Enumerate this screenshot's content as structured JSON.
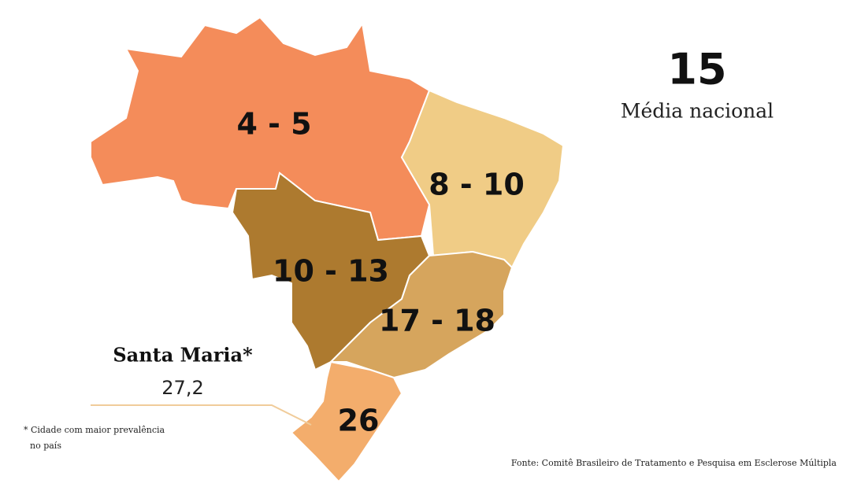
{
  "regions": [
    {
      "label": "4 - 5",
      "color": "#f48c5a"
    },
    {
      "label": "8 - 10",
      "color": "#f0cc86"
    },
    {
      "label": "10 - 13",
      "color": "#ad7a2f"
    },
    {
      "label": "17 - 18",
      "color": "#d6a55d"
    },
    {
      "label": "26",
      "color": "#f3ad6c"
    }
  ],
  "national": {
    "value": "15",
    "label": "Média nacional"
  },
  "callout": {
    "title": "Santa Maria*",
    "value": "27,2"
  },
  "footnote": [
    "* Cidade com maior prevalência",
    "no país"
  ],
  "source": "Fonte: Comitê Brasileiro de Tratamento e Pesquisa em Esclerose Múltipla"
}
